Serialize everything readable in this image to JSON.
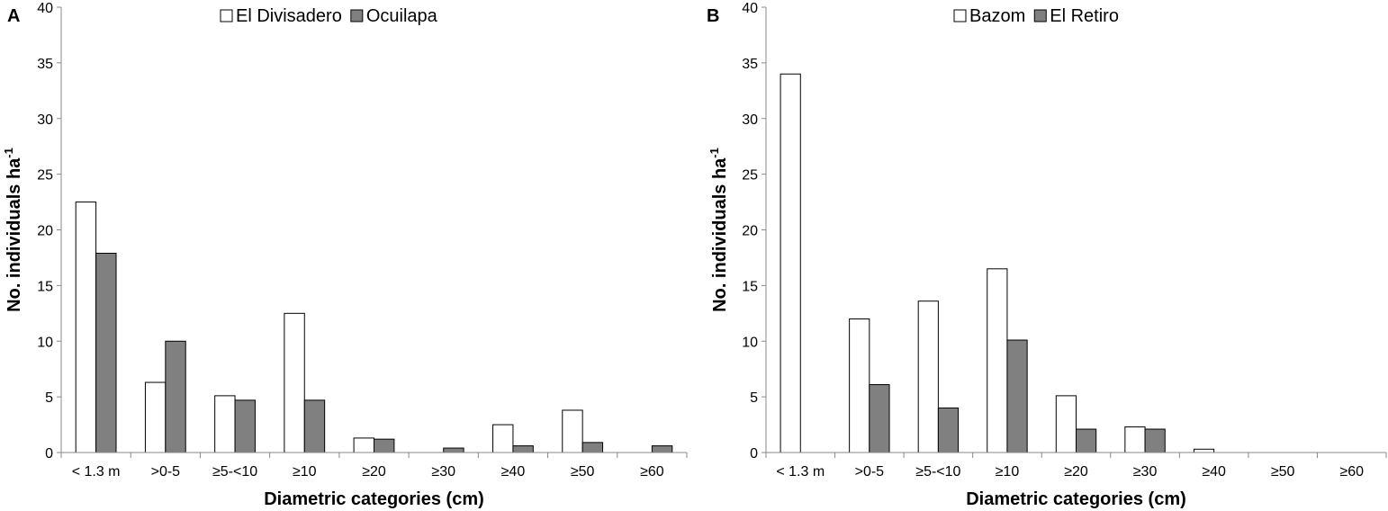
{
  "figure": {
    "ylabel_main": "No. individuals ha",
    "ylabel_sup": "-1"
  },
  "chart_data": [
    {
      "type": "bar",
      "panel": "A",
      "categories": [
        "< 1.3 m",
        ">0-5",
        "≥5-<10",
        "≥10",
        "≥20",
        "≥30",
        "≥40",
        "≥50",
        "≥60"
      ],
      "series": [
        {
          "name": "El Divisadero",
          "color": "#ffffff",
          "values": [
            22.5,
            6.3,
            5.1,
            12.5,
            1.3,
            0,
            2.5,
            3.8,
            0
          ]
        },
        {
          "name": "Ocuilapa",
          "color": "#808080",
          "values": [
            17.9,
            10.0,
            4.7,
            4.7,
            1.2,
            0.4,
            0.6,
            0.9,
            0.6
          ]
        }
      ],
      "xlabel": "Diametric categories (cm)",
      "ylabel": "No. individuals ha-1",
      "ylim": [
        0,
        40
      ],
      "yticks": [
        0,
        5,
        10,
        15,
        20,
        25,
        30,
        35,
        40
      ],
      "legend_position": "top-center"
    },
    {
      "type": "bar",
      "panel": "B",
      "categories": [
        "< 1.3 m",
        ">0-5",
        "≥5-<10",
        "≥10",
        "≥20",
        "≥30",
        "≥40",
        "≥50",
        "≥60"
      ],
      "series": [
        {
          "name": "Bazom",
          "color": "#ffffff",
          "values": [
            34.0,
            12.0,
            13.6,
            16.5,
            5.1,
            2.3,
            0.3,
            0,
            0
          ]
        },
        {
          "name": "El Retiro",
          "color": "#808080",
          "values": [
            0,
            6.1,
            4.0,
            10.1,
            2.1,
            2.1,
            0,
            0,
            0
          ]
        }
      ],
      "xlabel": "Diametric categories (cm)",
      "ylabel": "No. individuals ha-1",
      "ylim": [
        0,
        40
      ],
      "yticks": [
        0,
        5,
        10,
        15,
        20,
        25,
        30,
        35,
        40
      ],
      "legend_position": "top-center"
    }
  ]
}
